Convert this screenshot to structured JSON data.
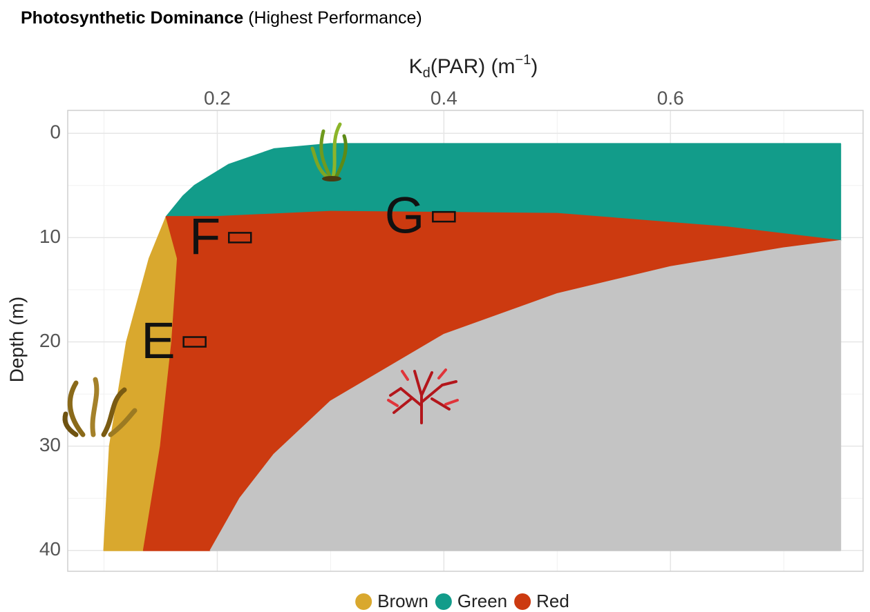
{
  "chart_data": {
    "type": "region",
    "title": "Photosynthetic Dominance",
    "subtitle": "(Highest Performance)",
    "x_label": {
      "main": "K",
      "sub": "d",
      "rest": "(PAR) (m",
      "sup": "−1",
      "end": ")"
    },
    "y_label": "Depth (m)",
    "xlim": [
      0.068,
      0.77
    ],
    "ylim": [
      -2.2,
      42
    ],
    "xticks": [
      0.2,
      0.4,
      0.6
    ],
    "yticks": [
      0,
      10,
      20,
      30,
      40
    ],
    "x_minor": [
      0.1,
      0.3,
      0.5,
      0.7
    ],
    "y_minor": [
      5,
      15,
      25,
      35
    ],
    "grid": true,
    "y_reversed": true,
    "x_axis_position": "top",
    "series": [
      {
        "name": "Brown",
        "color": "#d9a82e",
        "x": [
          0.1,
          0.105,
          0.12,
          0.14,
          0.155,
          0.165,
          0.16,
          0.15,
          0.135
        ],
        "values": [
          40,
          30,
          20,
          12,
          8,
          12,
          20,
          30,
          40
        ]
      },
      {
        "name": "Green",
        "color": "#129c8a",
        "x": [
          0.155,
          0.17,
          0.18,
          0.21,
          0.25,
          0.3,
          0.75,
          0.75,
          0.65,
          0.5,
          0.3,
          0.2
        ],
        "values": [
          8,
          6,
          5,
          3,
          1.5,
          1,
          1,
          10.3,
          9,
          7.7,
          7.5,
          8
        ]
      },
      {
        "name": "Red",
        "color": "#cc3a10",
        "x": [
          0.155,
          0.2,
          0.3,
          0.5,
          0.65,
          0.75,
          0.7,
          0.6,
          0.5,
          0.4,
          0.3,
          0.25,
          0.22,
          0.194,
          0.135,
          0.15,
          0.16,
          0.165
        ],
        "values": [
          8,
          8,
          7.5,
          7.7,
          9,
          10.3,
          11,
          12.8,
          15.4,
          19.3,
          25.7,
          30.8,
          35,
          40,
          40,
          30,
          20,
          12
        ]
      },
      {
        "color": "#c4c4c4",
        "x": [
          0.194,
          0.22,
          0.25,
          0.3,
          0.4,
          0.5,
          0.6,
          0.7,
          0.75,
          0.75
        ],
        "values": [
          40,
          35,
          30.8,
          25.7,
          19.3,
          15.4,
          12.8,
          11,
          10.3,
          40
        ]
      }
    ],
    "annotations": [
      {
        "label": "F",
        "x": 0.22,
        "y": 10
      },
      {
        "label": "G",
        "x": 0.4,
        "y": 8
      },
      {
        "label": "E",
        "x": 0.18,
        "y": 20
      }
    ]
  }
}
